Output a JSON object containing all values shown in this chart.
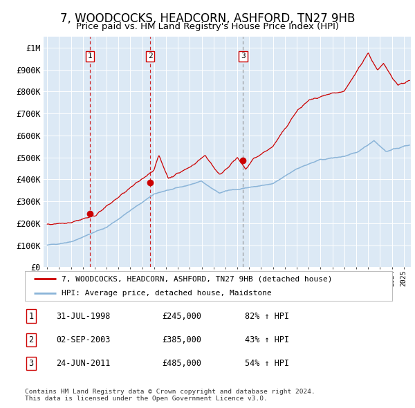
{
  "title": "7, WOODCOCKS, HEADCORN, ASHFORD, TN27 9HB",
  "subtitle": "Price paid vs. HM Land Registry's House Price Index (HPI)",
  "title_fontsize": 12,
  "subtitle_fontsize": 10,
  "bg_color": "#dce9f5",
  "hpi_color": "#8ab4d8",
  "house_color": "#cc0000",
  "sale_dates": [
    1998.58,
    2003.67,
    2011.48
  ],
  "sale_prices": [
    245000,
    385000,
    485000
  ],
  "sale_labels": [
    "1",
    "2",
    "3"
  ],
  "ylim": [
    0,
    1050000
  ],
  "yticks": [
    0,
    100000,
    200000,
    300000,
    400000,
    500000,
    600000,
    700000,
    800000,
    900000,
    1000000
  ],
  "ytick_labels": [
    "£0",
    "£100K",
    "£200K",
    "£300K",
    "£400K",
    "£500K",
    "£600K",
    "£700K",
    "£800K",
    "£900K",
    "£1M"
  ],
  "legend_house_label": "7, WOODCOCKS, HEADCORN, ASHFORD, TN27 9HB (detached house)",
  "legend_hpi_label": "HPI: Average price, detached house, Maidstone",
  "table_data": [
    [
      "1",
      "31-JUL-1998",
      "£245,000",
      "82% ↑ HPI"
    ],
    [
      "2",
      "02-SEP-2003",
      "£385,000",
      "43% ↑ HPI"
    ],
    [
      "3",
      "24-JUN-2011",
      "£485,000",
      "54% ↑ HPI"
    ]
  ],
  "footnote": "Contains HM Land Registry data © Crown copyright and database right 2024.\nThis data is licensed under the Open Government Licence v3.0.",
  "xlim_start": 1994.7,
  "xlim_end": 2025.6
}
